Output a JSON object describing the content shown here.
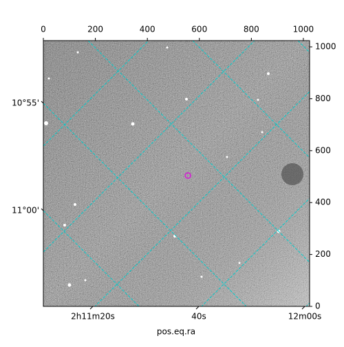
{
  "chart_data": {
    "type": "image",
    "xlabel": "pos.eq.ra",
    "xlim": [
      0,
      1024
    ],
    "xticks": [
      0,
      200,
      400,
      600,
      800,
      1000
    ],
    "ylim": [
      0,
      1024
    ],
    "yticks": [
      0,
      200,
      400,
      600,
      800,
      1000
    ],
    "ra_tick_labels": [
      "2h11m20s",
      "40s",
      "12m00s"
    ],
    "dec_tick_labels": [
      "10°55'",
      "11°00'"
    ],
    "grid_color": "#00cccc",
    "marker": {
      "x": 556,
      "y": 504,
      "color": "#cc33cc"
    }
  }
}
